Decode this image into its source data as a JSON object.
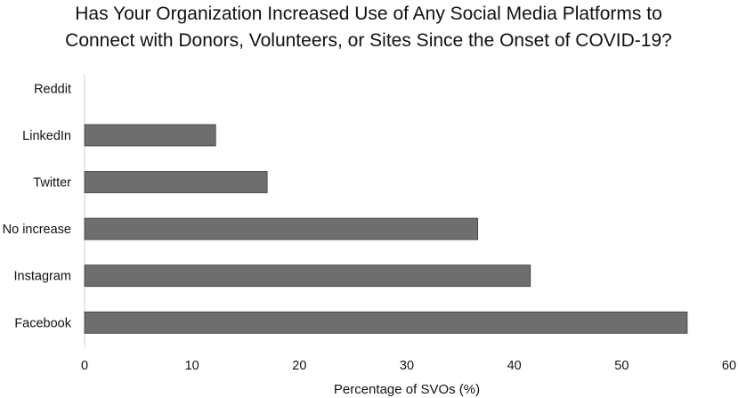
{
  "chart_data": {
    "type": "bar",
    "orientation": "horizontal",
    "title": [
      "Has Your Organization Increased Use of Any Social Media Platforms to",
      "Connect with Donors, Volunteers, or Sites Since the Onset of COVID-19?"
    ],
    "categories": [
      "Reddit",
      "LinkedIn",
      "Twitter",
      "No increase",
      "Instagram",
      "Facebook"
    ],
    "values": [
      0,
      12.2,
      17,
      36.6,
      41.5,
      56.1
    ],
    "xlabel": "Percentage of SVOs (%)",
    "ylabel": "",
    "xlim": [
      0,
      60
    ],
    "xticks": [
      "0",
      "10",
      "20",
      "30",
      "40",
      "50",
      "60"
    ],
    "grid": false,
    "legend": "none",
    "colors": {
      "bar": "#6e6e6e",
      "bar_edge": "#3a3a3a",
      "axis": "#d0d0d0",
      "text": "#111111"
    }
  }
}
